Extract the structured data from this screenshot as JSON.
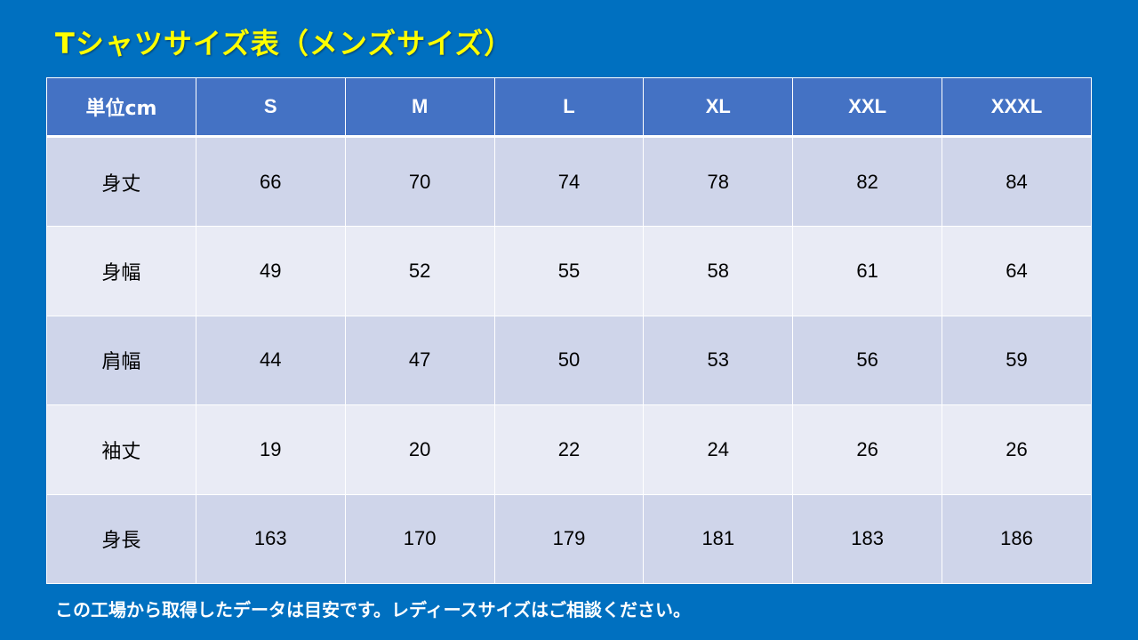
{
  "title": "Tシャツサイズ表（メンズサイズ）",
  "table": {
    "corner_label": "単位cm",
    "sizes": [
      "S",
      "M",
      "L",
      "XL",
      "XXL",
      "XXXL"
    ],
    "rows": [
      {
        "label": "身丈",
        "values": [
          "66",
          "70",
          "74",
          "78",
          "82",
          "84"
        ]
      },
      {
        "label": "身幅",
        "values": [
          "49",
          "52",
          "55",
          "58",
          "61",
          "64"
        ]
      },
      {
        "label": "肩幅",
        "values": [
          "44",
          "47",
          "50",
          "53",
          "56",
          "59"
        ]
      },
      {
        "label": "袖丈",
        "values": [
          "19",
          "20",
          "22",
          "24",
          "26",
          "26"
        ]
      },
      {
        "label": "身長",
        "values": [
          "163",
          "170",
          "179",
          "181",
          "183",
          "186"
        ]
      }
    ]
  },
  "footnote": "この工場から取得したデータは目安です。レディースサイズはご相談ください。",
  "colors": {
    "background": "#0070c0",
    "title": "#ffff00",
    "header": "#4472c4",
    "row_dark": "#cfd5ea",
    "row_light": "#e9ebf5"
  }
}
